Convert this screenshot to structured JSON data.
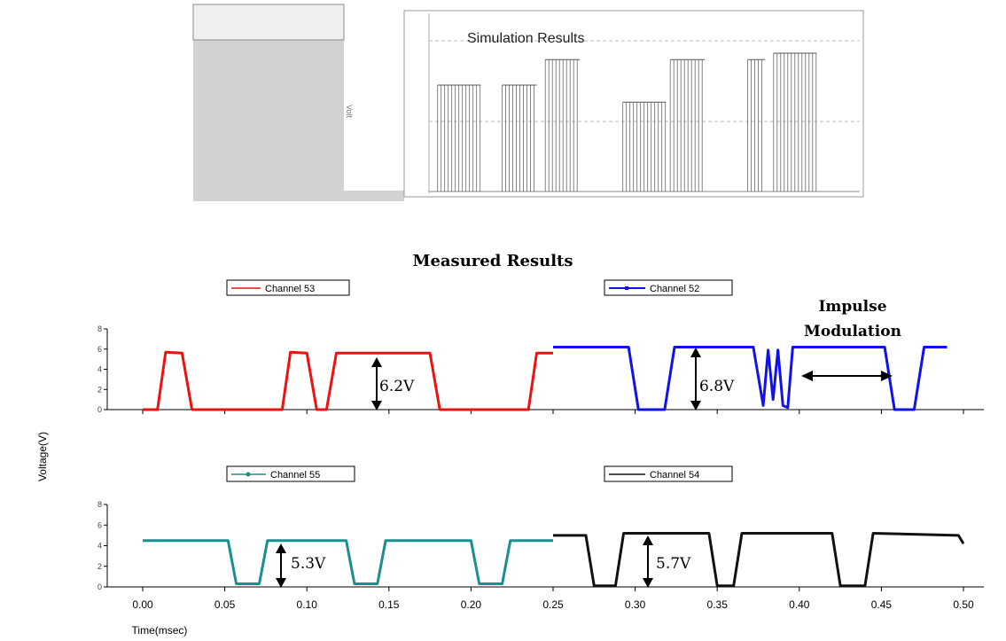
{
  "colors": {
    "channel_53": "#ee1111",
    "channel_52": "#1111ee",
    "channel_55": "#1a8f8f",
    "channel_54": "#111111",
    "inset_bg": "#d2d2d2",
    "inset_grid": "#bbbbbb"
  },
  "simulation": {
    "title": "Simulation Results",
    "ylabel": "Volt",
    "pulse_levels": {
      "a": 5,
      "b": 6.2,
      "c": 4.2,
      "d": 6.5
    },
    "pulses": [
      {
        "start": 0.02,
        "end": 0.12,
        "level": 5
      },
      {
        "start": 0.17,
        "end": 0.25,
        "level": 5
      },
      {
        "start": 0.27,
        "end": 0.35,
        "level": 6.2
      },
      {
        "start": 0.45,
        "end": 0.55,
        "level": 4.2
      },
      {
        "start": 0.56,
        "end": 0.64,
        "level": 6.2
      },
      {
        "start": 0.74,
        "end": 0.78,
        "level": 6.2
      },
      {
        "start": 0.8,
        "end": 0.9,
        "level": 6.5
      }
    ]
  },
  "chart_data": {
    "type": "line",
    "title": "Measured Results",
    "xlabel": "Time(msec)",
    "ylabel": "Voltage(V)",
    "xlim": [
      0.0,
      0.5
    ],
    "xticks": [
      "0.00",
      "0.05",
      "0.10",
      "0.15",
      "0.20",
      "0.25",
      "0.30",
      "0.35",
      "0.40",
      "0.45",
      "0.50"
    ],
    "yticks": [
      "0",
      "2",
      "4",
      "6",
      "8"
    ],
    "ylim": [
      0,
      8
    ],
    "panels": [
      {
        "name": "top",
        "series": [
          {
            "name": "Channel 53",
            "x": [
              0.0,
              0.009,
              0.014,
              0.024,
              0.03,
              0.085,
              0.09,
              0.1,
              0.106,
              0.112,
              0.118,
              0.175,
              0.181,
              0.235,
              0.24,
              0.25
            ],
            "y": [
              0,
              0,
              5.7,
              5.6,
              0,
              0,
              5.7,
              5.6,
              0,
              0,
              5.6,
              5.6,
              0,
              0,
              5.6,
              5.6
            ]
          },
          {
            "name": "Channel 52",
            "x": [
              0.25,
              0.296,
              0.302,
              0.318,
              0.324,
              0.372,
              0.378,
              0.381,
              0.384,
              0.387,
              0.39,
              0.393,
              0.396,
              0.452,
              0.458,
              0.47,
              0.476,
              0.49
            ],
            "y": [
              6.2,
              6.2,
              0,
              0,
              6.2,
              6.2,
              0.4,
              5.9,
              1.0,
              5.9,
              0.4,
              0.2,
              6.2,
              6.2,
              0,
              0,
              6.2,
              6.2
            ]
          }
        ],
        "annotations": [
          {
            "text": "6.2V",
            "x": 0.105
          },
          {
            "text": "6.8V",
            "x": 0.305
          },
          {
            "text": "Impulse",
            "x": 0.43
          },
          {
            "text": "Modulation",
            "x": 0.43
          }
        ]
      },
      {
        "name": "bottom",
        "series": [
          {
            "name": "Channel 55",
            "x": [
              0.0,
              0.052,
              0.057,
              0.071,
              0.076,
              0.124,
              0.129,
              0.143,
              0.148,
              0.2,
              0.205,
              0.219,
              0.224,
              0.25
            ],
            "y": [
              4.5,
              4.5,
              0.3,
              0.3,
              4.5,
              4.5,
              0.3,
              0.3,
              4.5,
              4.5,
              0.3,
              0.3,
              4.5,
              4.5
            ]
          },
          {
            "name": "Channel 54",
            "x": [
              0.25,
              0.27,
              0.275,
              0.288,
              0.293,
              0.345,
              0.35,
              0.36,
              0.365,
              0.42,
              0.425,
              0.44,
              0.445,
              0.497,
              0.5
            ],
            "y": [
              5.0,
              5.0,
              0.1,
              0.1,
              5.2,
              5.2,
              0.1,
              0.1,
              5.2,
              5.2,
              0.1,
              0.1,
              5.2,
              5.0,
              4.2
            ]
          }
        ],
        "annotations": [
          {
            "text": "5.3V",
            "x": 0.078
          },
          {
            "text": "5.7V",
            "x": 0.306
          }
        ]
      }
    ]
  }
}
